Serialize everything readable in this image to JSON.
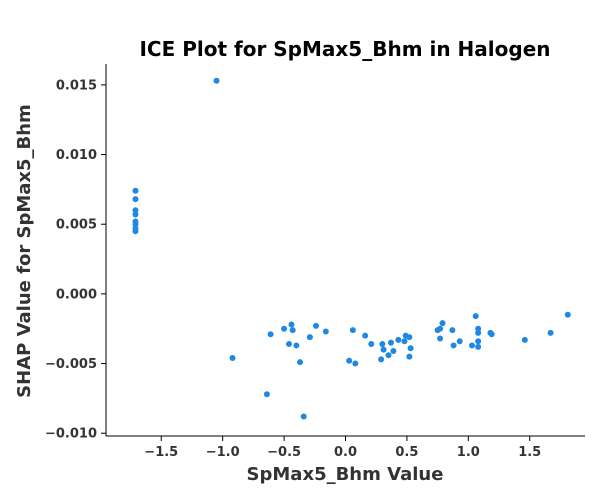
{
  "chart_data": {
    "type": "scatter",
    "title": "ICE Plot for SpMax5_Bhm in Halogen",
    "xlabel": "SpMax5_Bhm Value",
    "ylabel": "SHAP Value for SpMax5_Bhm",
    "xlim": [
      -1.95,
      1.95
    ],
    "ylim": [
      -0.0102,
      0.0165
    ],
    "xticks": [
      -1.5,
      -1.0,
      -0.5,
      0.0,
      0.5,
      1.0,
      1.5
    ],
    "xtick_labels": [
      "−1.5",
      "−1.0",
      "−0.5",
      "0.0",
      "0.5",
      "1.0",
      "1.5"
    ],
    "yticks": [
      -0.01,
      -0.005,
      0.0,
      0.005,
      0.01,
      0.015
    ],
    "ytick_labels": [
      "−0.010",
      "−0.005",
      "0.000",
      "0.005",
      "0.010",
      "0.015"
    ],
    "grid": false,
    "marker_color": "#1f88e5",
    "points": [
      [
        -1.71,
        0.0074
      ],
      [
        -1.71,
        0.0068
      ],
      [
        -1.71,
        0.006
      ],
      [
        -1.71,
        0.0057
      ],
      [
        -1.71,
        0.0052
      ],
      [
        -1.71,
        0.005
      ],
      [
        -1.71,
        0.0047
      ],
      [
        -1.71,
        0.0045
      ],
      [
        -1.05,
        0.0153
      ],
      [
        -0.92,
        -0.0046
      ],
      [
        -0.64,
        -0.0072
      ],
      [
        -0.61,
        -0.0029
      ],
      [
        -0.5,
        -0.0025
      ],
      [
        -0.46,
        -0.0036
      ],
      [
        -0.44,
        -0.0022
      ],
      [
        -0.43,
        -0.0026
      ],
      [
        -0.4,
        -0.0037
      ],
      [
        -0.37,
        -0.0049
      ],
      [
        -0.34,
        -0.0088
      ],
      [
        -0.29,
        -0.0031
      ],
      [
        -0.24,
        -0.0023
      ],
      [
        -0.16,
        -0.0027
      ],
      [
        0.03,
        -0.0048
      ],
      [
        0.06,
        -0.0026
      ],
      [
        0.08,
        -0.005
      ],
      [
        0.16,
        -0.003
      ],
      [
        0.21,
        -0.0036
      ],
      [
        0.29,
        -0.0047
      ],
      [
        0.3,
        -0.0036
      ],
      [
        0.31,
        -0.004
      ],
      [
        0.35,
        -0.0044
      ],
      [
        0.37,
        -0.0035
      ],
      [
        0.39,
        -0.0041
      ],
      [
        0.43,
        -0.0033
      ],
      [
        0.48,
        -0.0034
      ],
      [
        0.49,
        -0.003
      ],
      [
        0.52,
        -0.0031
      ],
      [
        0.52,
        -0.0045
      ],
      [
        0.53,
        -0.0039
      ],
      [
        0.75,
        -0.0026
      ],
      [
        0.77,
        -0.0025
      ],
      [
        0.77,
        -0.0032
      ],
      [
        0.79,
        -0.0021
      ],
      [
        0.87,
        -0.0026
      ],
      [
        0.88,
        -0.0037
      ],
      [
        0.93,
        -0.0034
      ],
      [
        1.03,
        -0.0037
      ],
      [
        1.06,
        -0.0016
      ],
      [
        1.08,
        -0.0025
      ],
      [
        1.08,
        -0.0028
      ],
      [
        1.08,
        -0.0034
      ],
      [
        1.08,
        -0.0038
      ],
      [
        1.18,
        -0.0028
      ],
      [
        1.19,
        -0.0029
      ],
      [
        1.46,
        -0.0033
      ],
      [
        1.67,
        -0.0028
      ],
      [
        1.81,
        -0.0015
      ]
    ]
  }
}
